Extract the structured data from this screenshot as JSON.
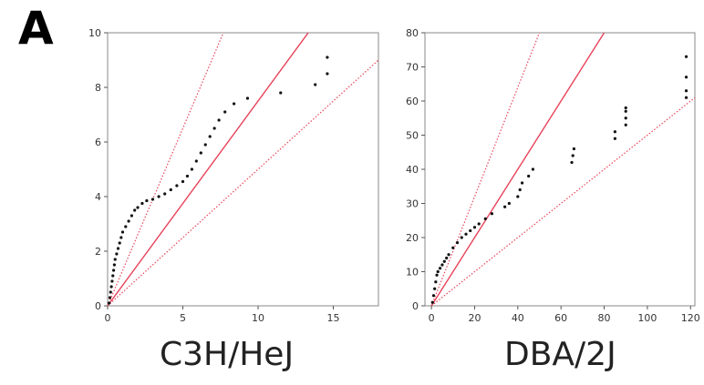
{
  "panel_letter": "A",
  "colors": {
    "reference_line": "#e8435a",
    "points": "#111111",
    "frame": "#888888"
  },
  "chart_data": [
    {
      "type": "scatter",
      "title": "C3H/HeJ",
      "xlim": [
        0,
        18
      ],
      "ylim": [
        0,
        10
      ],
      "xticks": [
        0,
        5,
        10,
        15
      ],
      "yticks": [
        0,
        2,
        4,
        6,
        8,
        10
      ],
      "ref_lines": [
        {
          "style": "solid",
          "slope": 0.75
        },
        {
          "style": "dotted",
          "slope": 1.3
        },
        {
          "style": "dotted",
          "slope": 0.5
        }
      ],
      "points": [
        [
          0.1,
          0.1
        ],
        [
          0.15,
          0.3
        ],
        [
          0.2,
          0.5
        ],
        [
          0.25,
          0.7
        ],
        [
          0.3,
          0.9
        ],
        [
          0.35,
          1.1
        ],
        [
          0.4,
          1.3
        ],
        [
          0.45,
          1.5
        ],
        [
          0.5,
          1.7
        ],
        [
          0.6,
          1.9
        ],
        [
          0.7,
          2.1
        ],
        [
          0.8,
          2.3
        ],
        [
          0.9,
          2.5
        ],
        [
          1.0,
          2.7
        ],
        [
          1.2,
          2.9
        ],
        [
          1.4,
          3.1
        ],
        [
          1.6,
          3.3
        ],
        [
          1.8,
          3.5
        ],
        [
          2.0,
          3.6
        ],
        [
          2.3,
          3.75
        ],
        [
          2.6,
          3.85
        ],
        [
          3.0,
          3.9
        ],
        [
          3.4,
          4.0
        ],
        [
          3.8,
          4.1
        ],
        [
          4.2,
          4.25
        ],
        [
          4.6,
          4.4
        ],
        [
          5.0,
          4.55
        ],
        [
          5.3,
          4.75
        ],
        [
          5.6,
          5.0
        ],
        [
          5.9,
          5.3
        ],
        [
          6.2,
          5.6
        ],
        [
          6.5,
          5.9
        ],
        [
          6.8,
          6.2
        ],
        [
          7.1,
          6.5
        ],
        [
          7.4,
          6.8
        ],
        [
          7.8,
          7.1
        ],
        [
          8.4,
          7.4
        ],
        [
          9.3,
          7.6
        ],
        [
          11.5,
          7.8
        ],
        [
          13.8,
          8.1
        ],
        [
          14.6,
          8.5
        ],
        [
          14.6,
          9.1
        ]
      ]
    },
    {
      "type": "scatter",
      "title": "DBA/2J",
      "xlim": [
        -3,
        122
      ],
      "ylim": [
        0,
        80
      ],
      "xticks": [
        0,
        20,
        40,
        60,
        80,
        100,
        120
      ],
      "yticks": [
        0,
        10,
        20,
        30,
        40,
        50,
        60,
        70,
        80
      ],
      "ref_lines": [
        {
          "style": "solid",
          "slope": 1.0
        },
        {
          "style": "dotted",
          "slope": 1.6
        },
        {
          "style": "dotted",
          "slope": 0.5
        }
      ],
      "points": [
        [
          0.5,
          1
        ],
        [
          1,
          3
        ],
        [
          1.5,
          5
        ],
        [
          2,
          7
        ],
        [
          2.5,
          9
        ],
        [
          3,
          10
        ],
        [
          4,
          11
        ],
        [
          5,
          12
        ],
        [
          6,
          13
        ],
        [
          7,
          14
        ],
        [
          8,
          15
        ],
        [
          10,
          17
        ],
        [
          12,
          18.5
        ],
        [
          14,
          20
        ],
        [
          16,
          21
        ],
        [
          18,
          22
        ],
        [
          20,
          23
        ],
        [
          22,
          24
        ],
        [
          25,
          25.5
        ],
        [
          28,
          27
        ],
        [
          34,
          29
        ],
        [
          36,
          30
        ],
        [
          40,
          32
        ],
        [
          41,
          34
        ],
        [
          42,
          36
        ],
        [
          45,
          38
        ],
        [
          47,
          40
        ],
        [
          65,
          42
        ],
        [
          65.5,
          44
        ],
        [
          66,
          46
        ],
        [
          85,
          49
        ],
        [
          85,
          51
        ],
        [
          90,
          53
        ],
        [
          90,
          55
        ],
        [
          90,
          57
        ],
        [
          90,
          58
        ],
        [
          118,
          61
        ],
        [
          118,
          63
        ],
        [
          118,
          67
        ],
        [
          118,
          73
        ]
      ]
    }
  ],
  "captions": [
    "C3H/HeJ",
    "DBA/2J"
  ]
}
